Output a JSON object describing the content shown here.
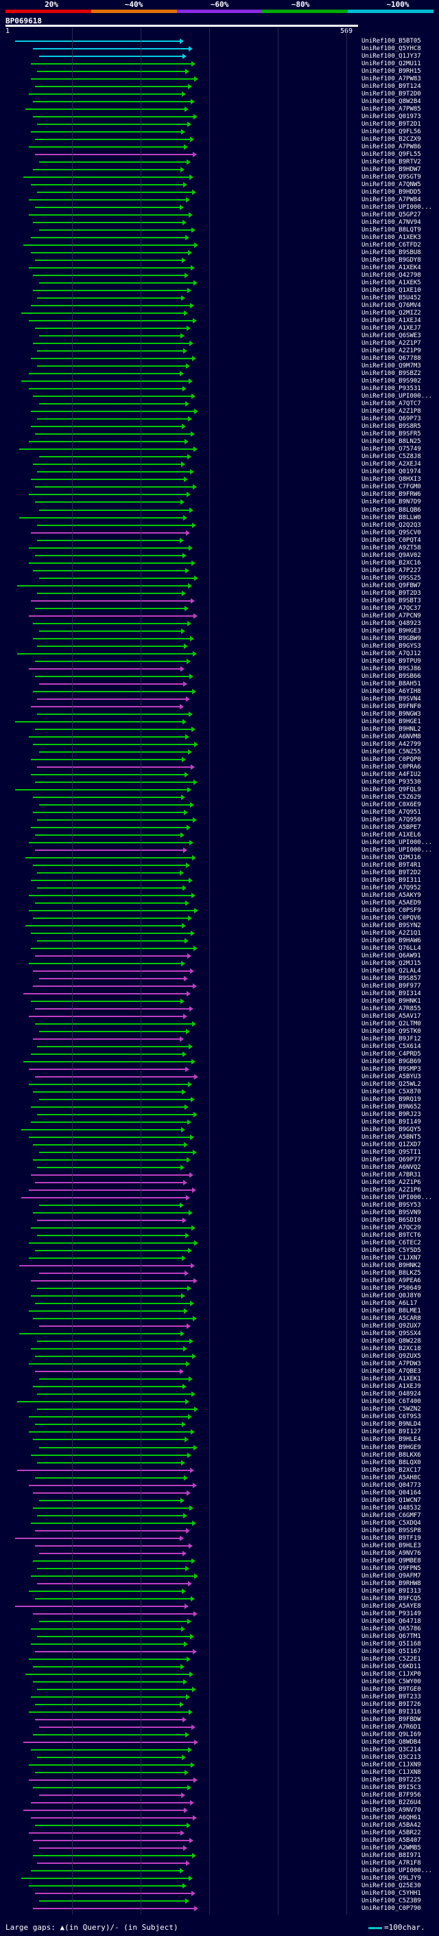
{
  "legend": {
    "labels": [
      "20%",
      "~40%",
      "~60%",
      "~80%",
      "~100%"
    ],
    "colors": [
      "#e00000",
      "#e07000",
      "#8a2be2",
      "#00aa00",
      "#00bcd4"
    ]
  },
  "query": {
    "id": "BP069618",
    "start": "1",
    "end": "569"
  },
  "hits": [
    {
      "label": "UniRef100_B5BT05",
      "c": "cyan"
    },
    {
      "label": "UniRef100_Q5YHC8",
      "c": "cyan"
    },
    {
      "label": "UniRef100_Q1JY37",
      "c": "cyan"
    },
    {
      "label": "UniRef100_Q2MU11",
      "c": "green"
    },
    {
      "label": "UniRef100_B9RH15",
      "c": "green"
    },
    {
      "label": "UniRef100_A7PW83",
      "c": "green"
    },
    {
      "label": "UniRef100_B9T124",
      "c": "green"
    },
    {
      "label": "UniRef100_B9T2D0",
      "c": "green"
    },
    {
      "label": "UniRef100_Q8W2B4",
      "c": "green"
    },
    {
      "label": "UniRef100_A7PW85",
      "c": "green"
    },
    {
      "label": "UniRef100_Q01973",
      "c": "green"
    },
    {
      "label": "UniRef100_B9T2D1",
      "c": "green"
    },
    {
      "label": "UniRef100_Q9FL56",
      "c": "green"
    },
    {
      "label": "UniRef100_B2CZX9",
      "c": "green"
    },
    {
      "label": "UniRef100_A7PW86",
      "c": "green"
    },
    {
      "label": "UniRef100_Q9FL55",
      "c": "purple"
    },
    {
      "label": "UniRef100_B9RTV2",
      "c": "green"
    },
    {
      "label": "UniRef100_B9HDW7",
      "c": "green"
    },
    {
      "label": "UniRef100_Q9SGT9",
      "c": "green"
    },
    {
      "label": "UniRef100_A7QNW5",
      "c": "green"
    },
    {
      "label": "UniRef100_B9HDD5",
      "c": "green"
    },
    {
      "label": "UniRef100_A7PW84",
      "c": "green"
    },
    {
      "label": "UniRef100_UPI000...",
      "c": "green"
    },
    {
      "label": "UniRef100_Q5GP27",
      "c": "green"
    },
    {
      "label": "UniRef100_A7NV94",
      "c": "green"
    },
    {
      "label": "UniRef100_B8LQT9",
      "c": "green"
    },
    {
      "label": "UniRef100_A1XEK3",
      "c": "green"
    },
    {
      "label": "UniRef100_C6TFD2",
      "c": "green"
    },
    {
      "label": "UniRef100_B9SBU8",
      "c": "green"
    },
    {
      "label": "UniRef100_B9GDY8",
      "c": "green"
    },
    {
      "label": "UniRef100_A1XEK4",
      "c": "green"
    },
    {
      "label": "UniRef100_Q42798",
      "c": "green"
    },
    {
      "label": "UniRef100_A1XEK5",
      "c": "green"
    },
    {
      "label": "UniRef100_Q1XE10",
      "c": "green"
    },
    {
      "label": "UniRef100_B5U452",
      "c": "green"
    },
    {
      "label": "UniRef100_Q76MV4",
      "c": "green"
    },
    {
      "label": "UniRef100_Q2MIZ2",
      "c": "green"
    },
    {
      "label": "UniRef100_A1XEJ4",
      "c": "green"
    },
    {
      "label": "UniRef100_A1XEJ7",
      "c": "green"
    },
    {
      "label": "UniRef100_Q6SWE3",
      "c": "green"
    },
    {
      "label": "UniRef100_A2Z1P7",
      "c": "green"
    },
    {
      "label": "UniRef100_A2Z1P9",
      "c": "green"
    },
    {
      "label": "UniRef100_Q67788",
      "c": "green"
    },
    {
      "label": "UniRef100_Q9M7M3",
      "c": "green"
    },
    {
      "label": "UniRef100_B9SBZ2",
      "c": "green"
    },
    {
      "label": "UniRef100_B9S902",
      "c": "green"
    },
    {
      "label": "UniRef100_P93531",
      "c": "green"
    },
    {
      "label": "UniRef100_UPI000...",
      "c": "green"
    },
    {
      "label": "UniRef100_A7QTC7",
      "c": "green"
    },
    {
      "label": "UniRef100_A2Z1P8",
      "c": "green"
    },
    {
      "label": "UniRef100_Q69P73",
      "c": "green"
    },
    {
      "label": "UniRef100_B9S8R5",
      "c": "green"
    },
    {
      "label": "UniRef100_B9SFR5",
      "c": "green"
    },
    {
      "label": "UniRef100_B8LN25",
      "c": "green"
    },
    {
      "label": "UniRef100_O75749",
      "c": "green"
    },
    {
      "label": "UniRef100_C5Z8J8",
      "c": "green"
    },
    {
      "label": "UniRef100_A2XEJ4",
      "c": "green"
    },
    {
      "label": "UniRef100_Q01974",
      "c": "green"
    },
    {
      "label": "UniRef100_Q8HXI3",
      "c": "green"
    },
    {
      "label": "UniRef100_C7FGM0",
      "c": "green"
    },
    {
      "label": "UniRef100_B9FRW6",
      "c": "green"
    },
    {
      "label": "UniRef100_B9N7D9",
      "c": "green"
    },
    {
      "label": "UniRef100_B8LQB6",
      "c": "green"
    },
    {
      "label": "UniRef100_B8LLW0",
      "c": "green"
    },
    {
      "label": "UniRef100_Q2Q2Q3",
      "c": "green"
    },
    {
      "label": "UniRef100_Q9SCV0",
      "c": "purple"
    },
    {
      "label": "UniRef100_C0PQT4",
      "c": "green"
    },
    {
      "label": "UniRef100_A9ZT58",
      "c": "green"
    },
    {
      "label": "UniRef100_Q9AV02",
      "c": "green"
    },
    {
      "label": "UniRef100_B2XC16",
      "c": "green"
    },
    {
      "label": "UniRef100_A7P227",
      "c": "green"
    },
    {
      "label": "UniRef100_Q9SS25",
      "c": "green"
    },
    {
      "label": "UniRef100_Q9FBW7",
      "c": "green"
    },
    {
      "label": "UniRef100_B9T2D3",
      "c": "green"
    },
    {
      "label": "UniRef100_B9SBT3",
      "c": "purple"
    },
    {
      "label": "UniRef100_A7QC37",
      "c": "green"
    },
    {
      "label": "UniRef100_A7PCN9",
      "c": "purple"
    },
    {
      "label": "UniRef100_Q48923",
      "c": "green"
    },
    {
      "label": "UniRef100_B9HGE3",
      "c": "green"
    },
    {
      "label": "UniRef100_B9GBW9",
      "c": "green"
    },
    {
      "label": "UniRef100_B9GYS3",
      "c": "green"
    },
    {
      "label": "UniRef100_A7QJ12",
      "c": "green"
    },
    {
      "label": "UniRef100_B9TPU9",
      "c": "green"
    },
    {
      "label": "UniRef100_B9SJ86",
      "c": "purple"
    },
    {
      "label": "UniRef100_B9SB66",
      "c": "green"
    },
    {
      "label": "UniRef100_B8AH51",
      "c": "purple"
    },
    {
      "label": "UniRef100_A6YIH8",
      "c": "green"
    },
    {
      "label": "UniRef100_B9SVN4",
      "c": "purple"
    },
    {
      "label": "UniRef100_B9FNF0",
      "c": "purple"
    },
    {
      "label": "UniRef100_B9NGW3",
      "c": "green"
    },
    {
      "label": "UniRef100_B9HGE1",
      "c": "green"
    },
    {
      "label": "UniRef100_B9HNL2",
      "c": "green"
    },
    {
      "label": "UniRef100_A6NVM8",
      "c": "green"
    },
    {
      "label": "UniRef100_A42799",
      "c": "green"
    },
    {
      "label": "UniRef100_C5NZ55",
      "c": "green"
    },
    {
      "label": "UniRef100_C0PQP0",
      "c": "green"
    },
    {
      "label": "UniRef100_C0PRA6",
      "c": "purple"
    },
    {
      "label": "UniRef100_A4FIU2",
      "c": "green"
    },
    {
      "label": "UniRef100_P93530",
      "c": "green"
    },
    {
      "label": "UniRef100_Q9FQL9",
      "c": "green"
    },
    {
      "label": "UniRef100_C5Z629",
      "c": "green"
    },
    {
      "label": "UniRef100_C0X6E9",
      "c": "green"
    },
    {
      "label": "UniRef100_A7Q951",
      "c": "green"
    },
    {
      "label": "UniRef100_A7Q950",
      "c": "green"
    },
    {
      "label": "UniRef100_A5BPE7",
      "c": "green"
    },
    {
      "label": "UniRef100_A1XEL6",
      "c": "green"
    },
    {
      "label": "UniRef100_UPI000...",
      "c": "green"
    },
    {
      "label": "UniRef100_UPI000...",
      "c": "purple"
    },
    {
      "label": "UniRef100_Q2MJ16",
      "c": "green"
    },
    {
      "label": "UniRef100_B9T4R1",
      "c": "green"
    },
    {
      "label": "UniRef100_B9T2D2",
      "c": "green"
    },
    {
      "label": "UniRef100_B9I311",
      "c": "green"
    },
    {
      "label": "UniRef100_A7Q952",
      "c": "green"
    },
    {
      "label": "UniRef100_A5AKY9",
      "c": "green"
    },
    {
      "label": "UniRef100_A5AED9",
      "c": "green"
    },
    {
      "label": "UniRef100_C0PSF9",
      "c": "green"
    },
    {
      "label": "UniRef100_C0PQV6",
      "c": "green"
    },
    {
      "label": "UniRef100_B9SYN2",
      "c": "green"
    },
    {
      "label": "UniRef100_A2Z1Q1",
      "c": "green"
    },
    {
      "label": "UniRef100_B9HAW6",
      "c": "green"
    },
    {
      "label": "UniRef100_Q76LL4",
      "c": "green"
    },
    {
      "label": "UniRef100_Q6AW91",
      "c": "purple"
    },
    {
      "label": "UniRef100_Q2MJ15",
      "c": "green"
    },
    {
      "label": "UniRef100_Q2LAL4",
      "c": "purple"
    },
    {
      "label": "UniRef100_B9S857",
      "c": "purple"
    },
    {
      "label": "UniRef100_B9F977",
      "c": "purple"
    },
    {
      "label": "UniRef100_B9I314",
      "c": "purple"
    },
    {
      "label": "UniRef100_B9HNK1",
      "c": "green"
    },
    {
      "label": "UniRef100_A7R855",
      "c": "purple"
    },
    {
      "label": "UniRef100_A5AV17",
      "c": "purple"
    },
    {
      "label": "UniRef100_Q2LTM0",
      "c": "green"
    },
    {
      "label": "UniRef100_Q9STK0",
      "c": "green"
    },
    {
      "label": "UniRef100_B9JF12",
      "c": "purple"
    },
    {
      "label": "UniRef100_C5X614",
      "c": "green"
    },
    {
      "label": "UniRef100_C4PRD5",
      "c": "green"
    },
    {
      "label": "UniRef100_B9GB69",
      "c": "green"
    },
    {
      "label": "UniRef100_B9SMP3",
      "c": "purple"
    },
    {
      "label": "UniRef100_A5BYU3",
      "c": "purple"
    },
    {
      "label": "UniRef100_Q25WL2",
      "c": "green"
    },
    {
      "label": "UniRef100_C5X870",
      "c": "green"
    },
    {
      "label": "UniRef100_B9RQ19",
      "c": "green"
    },
    {
      "label": "UniRef100_B9N652",
      "c": "green"
    },
    {
      "label": "UniRef100_B9RJ23",
      "c": "green"
    },
    {
      "label": "UniRef100_B9I149",
      "c": "green"
    },
    {
      "label": "UniRef100_B9GQY5",
      "c": "green"
    },
    {
      "label": "UniRef100_A5BNT5",
      "c": "green"
    },
    {
      "label": "UniRef100_Q1ZXD7",
      "c": "green"
    },
    {
      "label": "UniRef100_Q9STI1",
      "c": "green"
    },
    {
      "label": "UniRef100_Q69P77",
      "c": "green"
    },
    {
      "label": "UniRef100_A6NVQ2",
      "c": "green"
    },
    {
      "label": "UniRef100_A7BR31",
      "c": "purple"
    },
    {
      "label": "UniRef100_A2Z1P6",
      "c": "purple"
    },
    {
      "label": "UniRef100_A2Z1P6",
      "c": "purple"
    },
    {
      "label": "UniRef100_UPI000...",
      "c": "purple"
    },
    {
      "label": "UniRef100_B9SY53",
      "c": "green"
    },
    {
      "label": "UniRef100_B9SVN9",
      "c": "green"
    },
    {
      "label": "UniRef100_B6SDI0",
      "c": "purple"
    },
    {
      "label": "UniRef100_A7QC29",
      "c": "green"
    },
    {
      "label": "UniRef100_B9TCT6",
      "c": "green"
    },
    {
      "label": "UniRef100_C6TEC2",
      "c": "green"
    },
    {
      "label": "UniRef100_C5Y5D5",
      "c": "green"
    },
    {
      "label": "UniRef100_C1JXN7",
      "c": "green"
    },
    {
      "label": "UniRef100_B9HNK2",
      "c": "purple"
    },
    {
      "label": "UniRef100_B8LKZ5",
      "c": "purple"
    },
    {
      "label": "UniRef100_A9PEA6",
      "c": "purple"
    },
    {
      "label": "UniRef100_P50649",
      "c": "green"
    },
    {
      "label": "UniRef100_Q0J8Y0",
      "c": "green"
    },
    {
      "label": "UniRef100_A6L17",
      "c": "green"
    },
    {
      "label": "UniRef100_B8LME1",
      "c": "green"
    },
    {
      "label": "UniRef100_A5CAR8",
      "c": "green"
    },
    {
      "label": "UniRef100_Q9ZUX7",
      "c": "purple"
    },
    {
      "label": "UniRef100_Q9SSX4",
      "c": "green"
    },
    {
      "label": "UniRef100_Q8W228",
      "c": "green"
    },
    {
      "label": "UniRef100_B2XC18",
      "c": "green"
    },
    {
      "label": "UniRef100_Q9ZUX5",
      "c": "green"
    },
    {
      "label": "UniRef100_A7PDW3",
      "c": "green"
    },
    {
      "label": "UniRef100_A7QBE3",
      "c": "purple"
    },
    {
      "label": "UniRef100_A1XEK1",
      "c": "green"
    },
    {
      "label": "UniRef100_A1XEJ9",
      "c": "green"
    },
    {
      "label": "UniRef100_O48924",
      "c": "green"
    },
    {
      "label": "UniRef100_C6T400",
      "c": "green"
    },
    {
      "label": "UniRef100_C5WZN2",
      "c": "green"
    },
    {
      "label": "UniRef100_C6T9S3",
      "c": "green"
    },
    {
      "label": "UniRef100_B9NLD4",
      "c": "green"
    },
    {
      "label": "UniRef100_B9I127",
      "c": "green"
    },
    {
      "label": "UniRef100_B9HLE4",
      "c": "green"
    },
    {
      "label": "UniRef100_B9HGE9",
      "c": "green"
    },
    {
      "label": "UniRef100_B8LKX6",
      "c": "green"
    },
    {
      "label": "UniRef100_B8LQX0",
      "c": "green"
    },
    {
      "label": "UniRef100_B2XC17",
      "c": "purple"
    },
    {
      "label": "UniRef100_A5AH8C",
      "c": "green"
    },
    {
      "label": "UniRef100_Q04773",
      "c": "purple"
    },
    {
      "label": "UniRef100_Q04164",
      "c": "purple"
    },
    {
      "label": "UniRef100_Q1WCN7",
      "c": "green"
    },
    {
      "label": "UniRef100_Q48532",
      "c": "green"
    },
    {
      "label": "UniRef100_C6GMF7",
      "c": "green"
    },
    {
      "label": "UniRef100_C5XDQ4",
      "c": "green"
    },
    {
      "label": "UniRef100_B9SSP8",
      "c": "purple"
    },
    {
      "label": "UniRef100_B9TF19",
      "c": "purple"
    },
    {
      "label": "UniRef100_B9HLE3",
      "c": "purple"
    },
    {
      "label": "UniRef100_A9NV76",
      "c": "purple"
    },
    {
      "label": "UniRef100_Q9MBE8",
      "c": "green"
    },
    {
      "label": "UniRef100_Q9FPN5",
      "c": "green"
    },
    {
      "label": "UniRef100_Q9AFM7",
      "c": "green"
    },
    {
      "label": "UniRef100_B9RHW8",
      "c": "purple"
    },
    {
      "label": "UniRef100_B9I313",
      "c": "green"
    },
    {
      "label": "UniRef100_B9FCQ5",
      "c": "green"
    },
    {
      "label": "UniRef100_A5AYE8",
      "c": "purple"
    },
    {
      "label": "UniRef100_P93149",
      "c": "purple"
    },
    {
      "label": "UniRef100_Q64718",
      "c": "green"
    },
    {
      "label": "UniRef100_Q65786",
      "c": "green"
    },
    {
      "label": "UniRef100_Q67TM1",
      "c": "green"
    },
    {
      "label": "UniRef100_Q5I168",
      "c": "green"
    },
    {
      "label": "UniRef100_Q5I167",
      "c": "purple"
    },
    {
      "label": "UniRef100_C5Z2E1",
      "c": "green"
    },
    {
      "label": "UniRef100_C6KD11",
      "c": "green"
    },
    {
      "label": "UniRef100_C1JXP0",
      "c": "green"
    },
    {
      "label": "UniRef100_C5WY00",
      "c": "green"
    },
    {
      "label": "UniRef100_B9TGE0",
      "c": "green"
    },
    {
      "label": "UniRef100_B9T233",
      "c": "green"
    },
    {
      "label": "UniRef100_B9I726",
      "c": "green"
    },
    {
      "label": "UniRef100_B9I316",
      "c": "green"
    },
    {
      "label": "UniRef100_B9FBDW",
      "c": "purple"
    },
    {
      "label": "UniRef100_A7R6D1",
      "c": "purple"
    },
    {
      "label": "UniRef100_Q9LI69",
      "c": "green"
    },
    {
      "label": "UniRef100_Q8WDB4",
      "c": "purple"
    },
    {
      "label": "UniRef100_Q3C214",
      "c": "green"
    },
    {
      "label": "UniRef100_Q3C213",
      "c": "green"
    },
    {
      "label": "UniRef100_C1JXN9",
      "c": "green"
    },
    {
      "label": "UniRef100_C1JXN8",
      "c": "green"
    },
    {
      "label": "UniRef100_B9T225",
      "c": "purple"
    },
    {
      "label": "UniRef100_B9I5C3",
      "c": "green"
    },
    {
      "label": "UniRef100_B7F956",
      "c": "purple"
    },
    {
      "label": "UniRef100_B2Z6U4",
      "c": "purple"
    },
    {
      "label": "UniRef100_A9NV70",
      "c": "purple"
    },
    {
      "label": "UniRef100_A6QH61",
      "c": "purple"
    },
    {
      "label": "UniRef100_A5BA42",
      "c": "green"
    },
    {
      "label": "UniRef100_A5BR22",
      "c": "purple"
    },
    {
      "label": "UniRef100_A5B407",
      "c": "purple"
    },
    {
      "label": "UniRef100_A2WMB5",
      "c": "purple"
    },
    {
      "label": "UniRef100_B8I971",
      "c": "green"
    },
    {
      "label": "UniRef100_A7R1F8",
      "c": "purple"
    },
    {
      "label": "UniRef100_UPI000...",
      "c": "green"
    },
    {
      "label": "UniRef100_Q9LJY9",
      "c": "green"
    },
    {
      "label": "UniRef100_Q25E30",
      "c": "green"
    },
    {
      "label": "UniRef100_C5YHH1",
      "c": "purple"
    },
    {
      "label": "UniRef100_C5Z3B9",
      "c": "green"
    },
    {
      "label": "UniRef100_C0P790",
      "c": "purple"
    }
  ],
  "footer": {
    "text": "Large gaps: ▲(in Query)/- (in Subject)",
    "scale": "=100char."
  }
}
